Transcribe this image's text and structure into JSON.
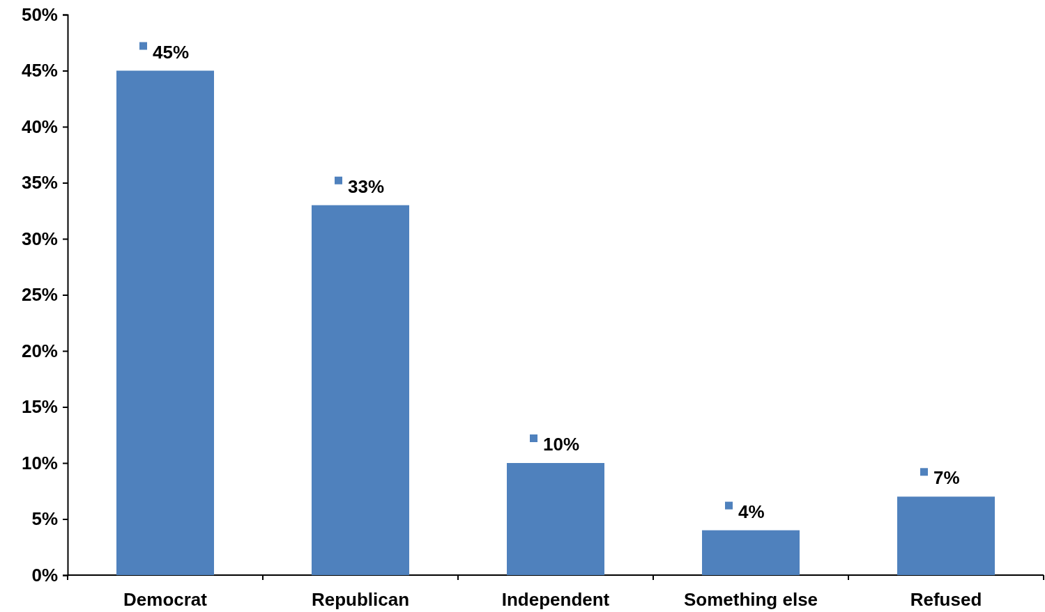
{
  "chart_data": {
    "type": "bar",
    "categories": [
      "Democrat",
      "Republican",
      "Independent",
      "Something else",
      "Refused"
    ],
    "values": [
      45,
      33,
      10,
      4,
      7
    ],
    "color": "#4f81bd",
    "ylim": [
      0,
      50
    ],
    "yticks": [
      {
        "value": 0,
        "label": "0%"
      },
      {
        "value": 5,
        "label": "5%"
      },
      {
        "value": 10,
        "label": "10%"
      },
      {
        "value": 15,
        "label": "15%"
      },
      {
        "value": 20,
        "label": "20%"
      },
      {
        "value": 25,
        "label": "25%"
      },
      {
        "value": 30,
        "label": "30%"
      },
      {
        "value": 35,
        "label": "35%"
      },
      {
        "value": 40,
        "label": "40%"
      },
      {
        "value": 45,
        "label": "45%"
      },
      {
        "value": 50,
        "label": "50%"
      }
    ],
    "value_labels": [
      "45%",
      "33%",
      "10%",
      "4%",
      "7%"
    ],
    "grid": false,
    "legend": false
  }
}
